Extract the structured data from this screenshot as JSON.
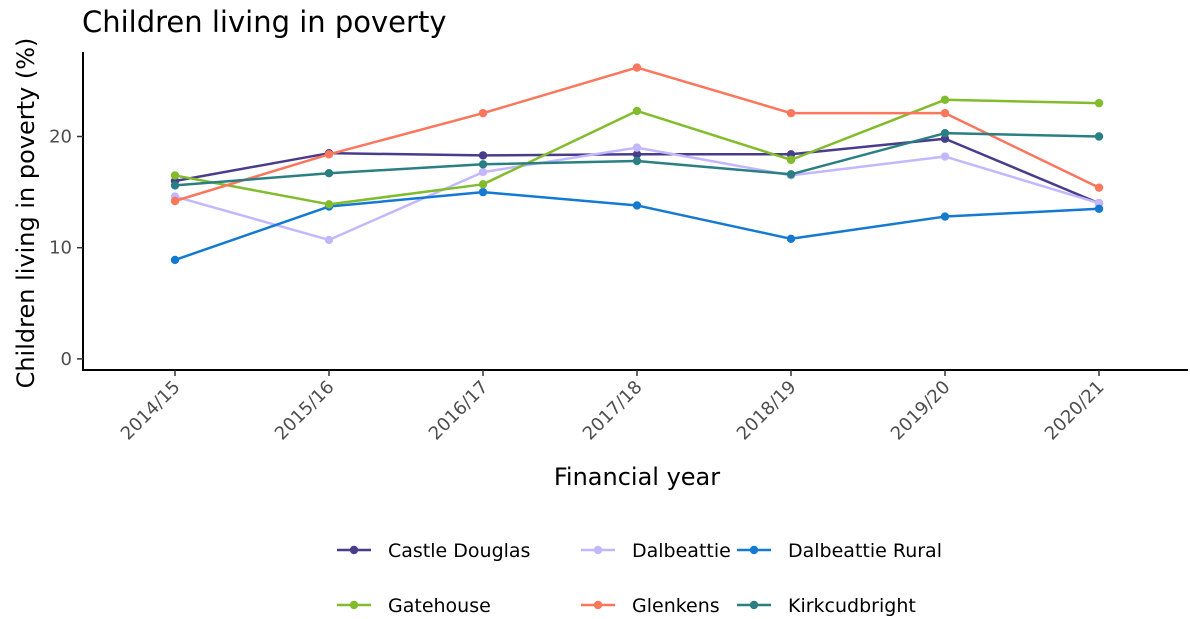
{
  "chart_data": {
    "type": "line",
    "title": "Children living in poverty",
    "xlabel": "Financial year",
    "ylabel": "Children living in poverty (%)",
    "categories": [
      "2014/15",
      "2015/16",
      "2016/17",
      "2017/18",
      "2018/19",
      "2019/20",
      "2020/21"
    ],
    "yticks": [
      0,
      10,
      20
    ],
    "ylim": [
      -1,
      27.6
    ],
    "grid": false,
    "legend_position": "bottom",
    "series": [
      {
        "name": "Castle Douglas",
        "color": "#483d8b",
        "values": [
          16.0,
          18.5,
          18.3,
          18.4,
          18.4,
          19.8,
          14.0
        ]
      },
      {
        "name": "Dalbeattie",
        "color": "#c3b8ff",
        "values": [
          14.6,
          10.7,
          16.8,
          19.0,
          16.5,
          18.2,
          14.0
        ]
      },
      {
        "name": "Dalbeattie Rural",
        "color": "#1479d1",
        "values": [
          8.9,
          13.7,
          15.0,
          13.8,
          10.8,
          12.8,
          13.5
        ]
      },
      {
        "name": "Gatehouse",
        "color": "#82bc2d",
        "values": [
          16.5,
          13.9,
          15.7,
          22.3,
          17.9,
          23.3,
          23.0
        ]
      },
      {
        "name": "Glenkens",
        "color": "#fb765d",
        "values": [
          14.2,
          18.4,
          22.1,
          26.2,
          22.1,
          22.1,
          15.4
        ]
      },
      {
        "name": "Kirkcudbright",
        "color": "#2a7f83",
        "values": [
          15.6,
          16.7,
          17.5,
          17.8,
          16.6,
          20.3,
          20.0
        ]
      }
    ]
  }
}
